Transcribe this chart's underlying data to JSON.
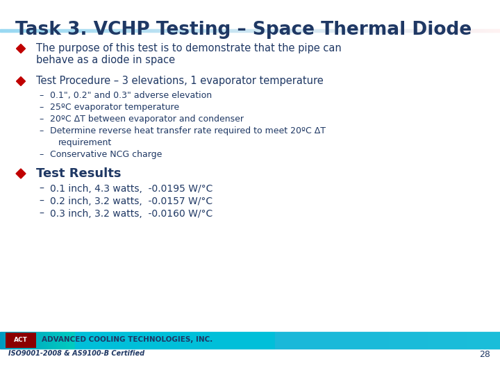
{
  "title": "Task 3. VCHP Testing – Space Thermal Diode",
  "title_color": "#1F3864",
  "title_fontsize": 19,
  "bg_color": "#FFFFFF",
  "diamond_color": "#C00000",
  "bullet1_line1": "The purpose of this test is to demonstrate that the pipe can",
  "bullet1_line2": "behave as a diode in space",
  "bullet2": "Test Procedure – 3 elevations, 1 evaporator temperature",
  "sub_bullets2": [
    "0.1\", 0.2\" and 0.3\" adverse elevation",
    "25ºC evaporator temperature",
    "20ºC ΔT between evaporator and condenser",
    "Determine reverse heat transfer rate required to meet 20ºC ΔT",
    "    requirement",
    "Conservative NCG charge"
  ],
  "bullet3": "Test Results",
  "sub_bullets3": [
    "0.1 inch, 4.3 watts,  -0.0195 W/°C",
    "0.2 inch, 3.2 watts,  -0.0157 W/°C",
    "0.3 inch, 3.2 watts,  -0.0160 W/°C"
  ],
  "footer_text": "ADVANCED COOLING TECHNOLOGIES, INC.",
  "footer_sub": "ISO9001-2008 & AS9100-B Certified",
  "page_num": "28",
  "text_color": "#1F3864",
  "header_line_color": "#4BACC6",
  "footer_bar_color": "#00B8D4",
  "logo_bg": "#8B0000"
}
